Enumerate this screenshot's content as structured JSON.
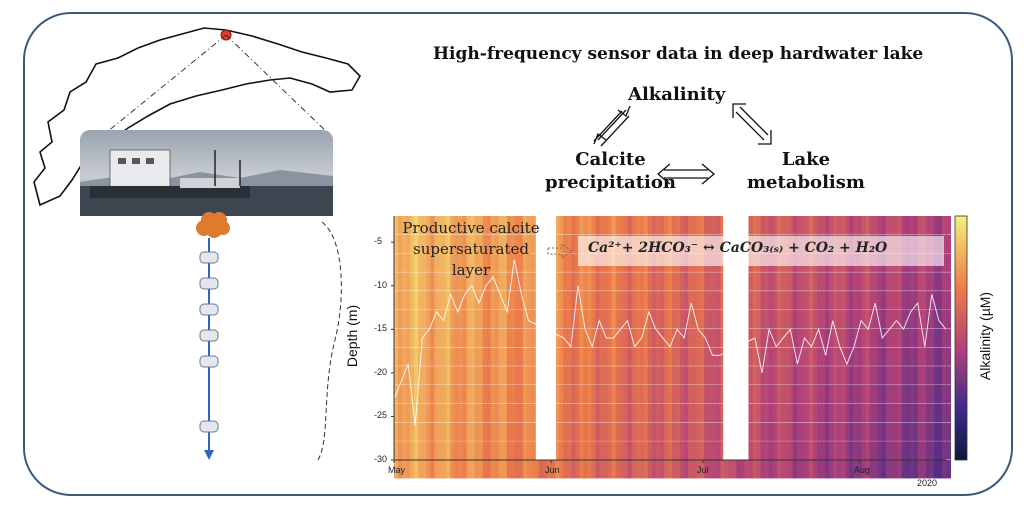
{
  "title": "High-frequency sensor data in deep hardwater lake",
  "concepts": {
    "alkalinity": "Alkalinity",
    "calcite": [
      "Calcite",
      "precipitation"
    ],
    "metabolism": [
      "Lake",
      "metabolism"
    ]
  },
  "annotation": [
    "Productive calcite",
    "supersaturated",
    "layer"
  ],
  "equation": "Ca²⁺+ 2HCO₃⁻ ↔ CaCO₃₍ₛ₎ + CO₂ + H₂O",
  "colors": {
    "frame": "#3b5a7a",
    "marker": "#e23b2b",
    "buoy": "#e07a2e",
    "mooring": "#2e63c8"
  },
  "icons": [
    "lake-outline",
    "platform-photo",
    "buoy-icon",
    "sensor-icon"
  ],
  "chart_data": {
    "type": "heatmap",
    "xlabel": "",
    "ylabel": "Depth (m)",
    "colorbar_label": "Alkalinity (µM)",
    "x_ticks": [
      "May",
      "Jun",
      "Jul",
      "Aug"
    ],
    "x_ticks_note": "2020",
    "y_ticks": [
      "-5",
      "-10",
      "-15",
      "-20",
      "-25",
      "-30"
    ],
    "ylim": [
      -30,
      -2
    ],
    "gaps": [
      [
        "2020-05-29",
        "2020-06-02"
      ],
      [
        "2020-07-05",
        "2020-07-10"
      ]
    ],
    "overlay_line_depth_m": [
      -23,
      -21,
      -19,
      -26,
      -16,
      -15,
      -13,
      -14,
      -11,
      -13,
      -11,
      -10,
      -12,
      -10,
      -9,
      -11,
      -13,
      -7,
      -11,
      -14,
      -17,
      -18,
      -15,
      -14,
      -16,
      -17,
      -10,
      -15,
      -17,
      -14,
      -16,
      -16,
      -15,
      -14,
      -17,
      -16,
      -13,
      -15,
      -16,
      -17,
      -15,
      -16,
      -12,
      -15,
      -16,
      -18,
      -18,
      -16,
      -17,
      -15,
      -14,
      -16,
      -20,
      -15,
      -17,
      -16,
      -15,
      -19,
      -16,
      -17,
      -15,
      -18,
      -14,
      -17,
      -19,
      -17,
      -14,
      -15,
      -12,
      -16,
      -15,
      -14,
      -15,
      -13,
      -12,
      -17,
      -11,
      -14,
      -15
    ]
  }
}
